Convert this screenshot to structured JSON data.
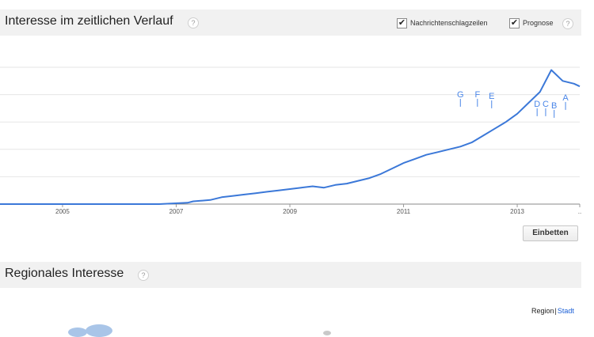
{
  "section1": {
    "title": "Interesse im zeitlichen Verlauf",
    "help": "?",
    "checkbox_news": {
      "label": "Nachrichtenschlagzeilen",
      "checked": true
    },
    "checkbox_forecast": {
      "label": "Prognose",
      "checked": true
    },
    "embed_label": "Einbetten"
  },
  "section2": {
    "title": "Regionales Interesse",
    "help": "?",
    "toggle": {
      "selected": "Region",
      "separator": "|",
      "other": "Stadt"
    }
  },
  "colors": {
    "line": "#3b78d8",
    "marker": "#4a86e8",
    "header_bg": "#f1f1f1",
    "link": "#1a5fd6"
  },
  "chart_data": {
    "type": "line",
    "x_tick_labels": [
      "2005",
      "2007",
      "2009",
      "2011",
      "2013",
      ".."
    ],
    "x_ticks": [
      2005,
      2007,
      2009,
      2011,
      2013,
      2014.1
    ],
    "xlim": [
      2003.9,
      2014.1
    ],
    "ylim": [
      0,
      100
    ],
    "grid": true,
    "series": [
      {
        "style": "solid",
        "x": [
          2003.9,
          2006.7,
          2007.2,
          2007.3,
          2007.6,
          2007.8,
          2008.0,
          2008.2,
          2008.4,
          2008.6,
          2008.8,
          2009.0,
          2009.2,
          2009.4,
          2009.6,
          2009.8,
          2010.0,
          2010.2,
          2010.4,
          2010.6,
          2010.8,
          2011.0,
          2011.2,
          2011.4,
          2011.6,
          2011.8,
          2012.0,
          2012.2,
          2012.4,
          2012.6,
          2012.8,
          2013.0,
          2013.2,
          2013.4,
          2013.6,
          2013.8,
          2014.0,
          2014.1
        ],
        "y": [
          0,
          0,
          1,
          2,
          3,
          5,
          6,
          7,
          8,
          9,
          10,
          11,
          12,
          13,
          12,
          14,
          15,
          17,
          19,
          22,
          26,
          30,
          33,
          36,
          38,
          40,
          42,
          45,
          50,
          55,
          60,
          66,
          74,
          82,
          98,
          90,
          88,
          86
        ]
      }
    ],
    "markers": [
      "G",
      "F",
      "E",
      "D",
      "C",
      "B",
      "A"
    ]
  }
}
